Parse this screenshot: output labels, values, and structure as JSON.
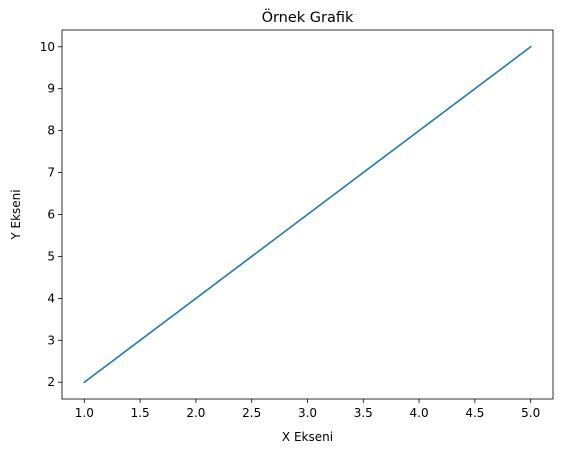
{
  "chart_data": {
    "type": "line",
    "title": "Örnek Grafik",
    "xlabel": "X Ekseni",
    "ylabel": "Y Ekseni",
    "xlim": [
      0.8,
      5.2
    ],
    "ylim": [
      1.6,
      10.4
    ],
    "x_ticks": [
      1.0,
      1.5,
      2.0,
      2.5,
      3.0,
      3.5,
      4.0,
      4.5,
      5.0
    ],
    "x_tick_labels": [
      "1.0",
      "1.5",
      "2.0",
      "2.5",
      "3.0",
      "3.5",
      "4.0",
      "4.5",
      "5.0"
    ],
    "y_ticks": [
      2,
      3,
      4,
      5,
      6,
      7,
      8,
      9,
      10
    ],
    "y_tick_labels": [
      "2",
      "3",
      "4",
      "5",
      "6",
      "7",
      "8",
      "9",
      "10"
    ],
    "grid": false,
    "series": [
      {
        "name": "line",
        "x": [
          1,
          2,
          3,
          4,
          5
        ],
        "y": [
          2,
          4,
          6,
          8,
          10
        ],
        "color": "#1f77b4"
      }
    ]
  }
}
